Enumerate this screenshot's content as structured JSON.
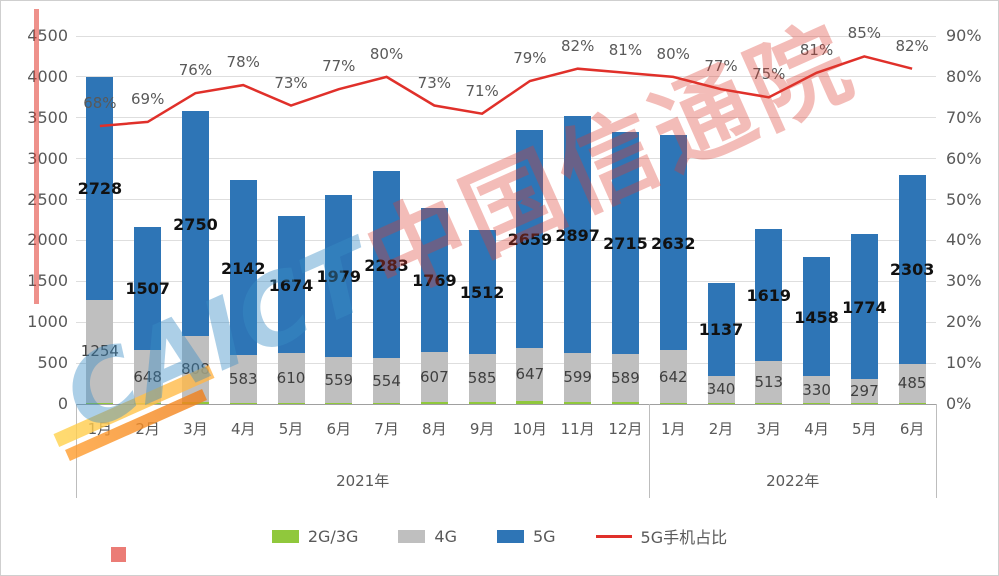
{
  "watermark": {
    "en": "CAICT",
    "cn": "中国信通院"
  },
  "chart_data": {
    "type": "bar",
    "subtype": "stacked-bar-with-line",
    "categories": [
      "1月",
      "2月",
      "3月",
      "4月",
      "5月",
      "6月",
      "7月",
      "8月",
      "9月",
      "10月",
      "11月",
      "12月",
      "1月",
      "2月",
      "3月",
      "4月",
      "5月",
      "6月"
    ],
    "year_groups": [
      {
        "label": "2021年",
        "span": 12
      },
      {
        "label": "2022年",
        "span": 6
      }
    ],
    "series": [
      {
        "name": "2G/3G",
        "color": "#90c83c",
        "show_labels": false,
        "values": [
          18,
          12,
          22,
          15,
          12,
          12,
          10,
          25,
          30,
          40,
          25,
          20,
          15,
          8,
          12,
          8,
          8,
          10
        ]
      },
      {
        "name": "4G",
        "color": "#bfbfbf",
        "show_labels": true,
        "values": [
          1254,
          648,
          808,
          583,
          610,
          559,
          554,
          607,
          585,
          647,
          599,
          589,
          642,
          340,
          513,
          330,
          297,
          485
        ]
      },
      {
        "name": "5G",
        "color": "#2e75b6",
        "show_labels": true,
        "values": [
          2728,
          1507,
          2750,
          2142,
          1674,
          1979,
          2283,
          1769,
          1512,
          2659,
          2897,
          2715,
          2632,
          1137,
          1619,
          1458,
          1774,
          2303
        ]
      }
    ],
    "line_series": {
      "name": "5G手机占比",
      "color": "#e0302a",
      "values_pct": [
        68,
        69,
        76,
        78,
        73,
        77,
        80,
        73,
        71,
        79,
        82,
        81,
        80,
        77,
        75,
        81,
        85,
        82
      ]
    },
    "left_axis": {
      "min": 0,
      "max": 4500,
      "step": 500
    },
    "right_axis": {
      "min": 0,
      "max": 90,
      "step": 10,
      "suffix": "%"
    },
    "grid": true,
    "legend_position": "bottom"
  }
}
